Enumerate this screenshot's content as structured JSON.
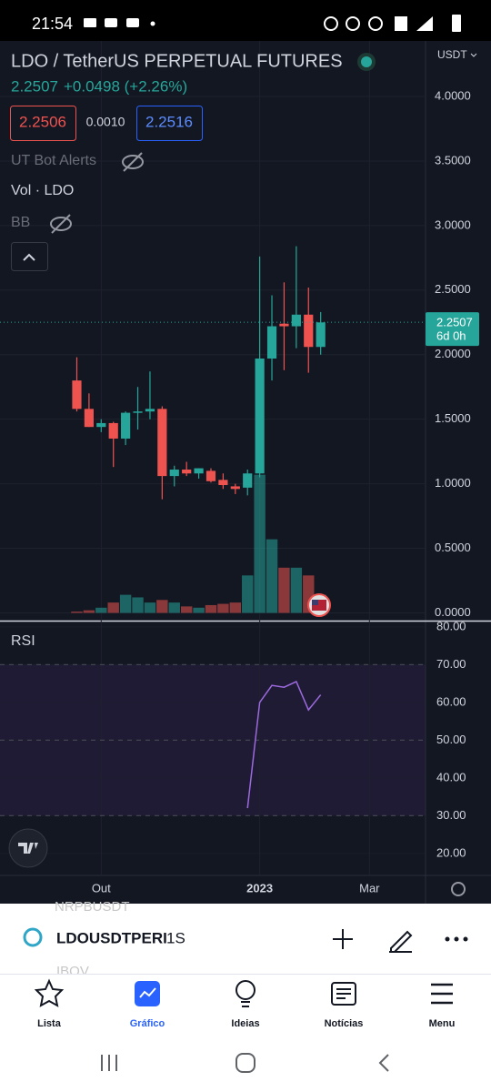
{
  "status": {
    "time": "21:54"
  },
  "header": {
    "title": "LDO / TetherUS PERPETUAL FUTURES",
    "price": "2.2507",
    "change": "+0.0498 (+2.26%)",
    "bid": "2.2506",
    "spread": "0.0010",
    "ask": "2.2516",
    "currency": "USDT"
  },
  "indicators": [
    "UT Bot Alerts",
    "Vol · LDO",
    "BB"
  ],
  "chart_data": [
    {
      "type": "candlestick",
      "x": [
        0,
        1,
        2,
        3,
        4,
        5,
        6,
        7,
        8,
        9,
        10,
        11,
        12,
        13,
        14,
        15,
        16,
        17,
        18,
        19,
        20
      ],
      "open": [
        1.8,
        1.58,
        1.44,
        1.47,
        1.35,
        1.55,
        1.56,
        1.58,
        1.06,
        1.11,
        1.08,
        1.1,
        1.03,
        0.98,
        0.97,
        1.08,
        1.97,
        2.24,
        2.22,
        2.31,
        2.06
      ],
      "high": [
        1.98,
        1.7,
        1.5,
        1.48,
        1.56,
        1.75,
        1.87,
        1.6,
        1.14,
        1.17,
        1.12,
        1.12,
        1.08,
        1.0,
        1.11,
        2.76,
        2.46,
        2.56,
        2.84,
        2.52,
        2.33
      ],
      "low": [
        1.56,
        1.44,
        1.4,
        1.13,
        1.3,
        1.42,
        1.5,
        0.88,
        0.98,
        1.06,
        1.04,
        1.01,
        0.96,
        0.92,
        0.91,
        1.05,
        1.8,
        1.88,
        2.05,
        1.86,
        2.0
      ],
      "close": [
        1.58,
        1.44,
        1.47,
        1.35,
        1.55,
        1.56,
        1.58,
        1.06,
        1.11,
        1.08,
        1.12,
        1.02,
        0.99,
        0.96,
        1.08,
        1.97,
        2.22,
        2.22,
        2.31,
        2.06,
        2.25
      ],
      "volume": [
        0.01,
        0.02,
        0.04,
        0.08,
        0.14,
        0.12,
        0.08,
        0.1,
        0.08,
        0.05,
        0.04,
        0.06,
        0.07,
        0.08,
        0.29,
        1.07,
        0.57,
        0.35,
        0.35,
        0.29,
        0.14
      ],
      "up_color": "#26a69a",
      "down_color": "#ef5350",
      "xlim": [
        -6.3,
        28.6
      ],
      "xticks": [
        {
          "value": 2,
          "label": "Out"
        },
        {
          "value": 15,
          "label": "2023"
        },
        {
          "value": 24,
          "label": "Mar"
        }
      ],
      "ylim": [
        -0.06,
        4.43
      ],
      "yticks": [
        {
          "value": 0,
          "label": "0.0000"
        },
        {
          "value": 0.5,
          "label": "0.5000"
        },
        {
          "value": 1,
          "label": "1.0000"
        },
        {
          "value": 1.5,
          "label": "1.5000"
        },
        {
          "value": 2,
          "label": "2.0000"
        },
        {
          "value": 2.5,
          "label": "2.5000"
        },
        {
          "value": 3,
          "label": "3.0000"
        },
        {
          "value": 3.5,
          "label": "3.5000"
        },
        {
          "value": 4,
          "label": "4.0000"
        }
      ],
      "last_price": {
        "value": 2.2507,
        "label": "2.2507",
        "countdown": "6d 0h"
      },
      "grid": true
    },
    {
      "type": "line",
      "title": "RSI",
      "x": [
        14,
        15,
        16,
        17,
        18,
        19,
        20
      ],
      "values": [
        32,
        60,
        64.5,
        64,
        65.5,
        58,
        62
      ],
      "color": "#9c6ade",
      "ylim": [
        14.2,
        81.4
      ],
      "yticks": [
        {
          "value": 20,
          "label": "20.00"
        },
        {
          "value": 30,
          "label": "30.00"
        },
        {
          "value": 40,
          "label": "40.00"
        },
        {
          "value": 50,
          "label": "50.00"
        },
        {
          "value": 60,
          "label": "60.00"
        },
        {
          "value": 70,
          "label": "70.00"
        },
        {
          "value": 80,
          "label": "80.00"
        }
      ],
      "levels": [
        30,
        50,
        70
      ]
    }
  ],
  "toolbar": {
    "ghost_above": "NRPBUSDT",
    "symbol": "LDOUSDTPERI",
    "interval": "1S",
    "ghost_below": "IBOV"
  },
  "nav": [
    "Lista",
    "Gráfico",
    "Ideias",
    "Notícias",
    "Menu"
  ]
}
